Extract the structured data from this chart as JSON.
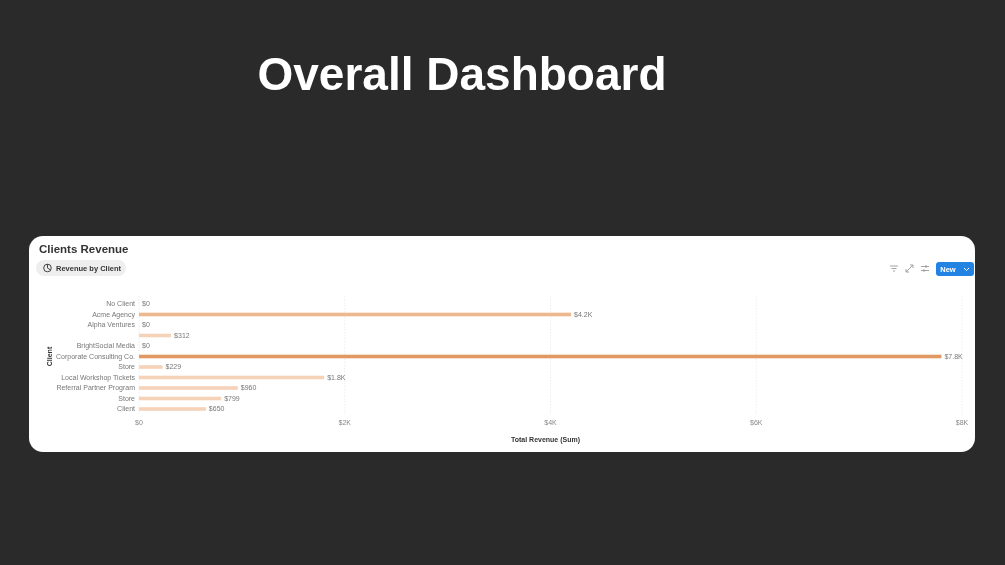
{
  "chart_data": {
    "type": "bar",
    "orientation": "horizontal",
    "title": "Overall Dashboard",
    "subtitle": "Clients Revenue",
    "annotations": [
      "Revenue by Client",
      "New"
    ],
    "categories": [
      "No Client",
      "Acme Agency",
      "Alpha Ventures",
      null,
      "BrightSocial Media",
      "Corporate Consulting Co.",
      "Store",
      "Local Workshop Tickets",
      "Referral Partner Program",
      "Store",
      "Client"
    ],
    "values": [
      0,
      4200,
      0,
      312,
      0,
      7800,
      229,
      1800,
      960,
      799,
      650
    ],
    "value_labels": [
      "$0",
      "$4.2K",
      "$0",
      "$312",
      "$0",
      "$7.8K",
      "$229",
      "$1.8K",
      "$960",
      "$799",
      "$650"
    ],
    "colors": [
      "#f6d3b8",
      "#eeb88e",
      "#f6d3b8",
      "#f6d3b8",
      "#f6d3b8",
      "#e29862",
      "#f6d3b8",
      "#f6d3b8",
      "#f6d3b8",
      "#f6d3b8",
      "#f6d3b8"
    ],
    "xlim": [
      0,
      8000
    ],
    "xticks": [
      {
        "value": 0,
        "label": "$0"
      },
      {
        "value": 2000,
        "label": "$2K"
      },
      {
        "value": 4000,
        "label": "$4K"
      },
      {
        "value": 6000,
        "label": "$6K"
      },
      {
        "value": 8000,
        "label": "$8K"
      }
    ],
    "xlabel": "Total Revenue (Sum)",
    "ylabel": "Client",
    "grid": "x"
  }
}
